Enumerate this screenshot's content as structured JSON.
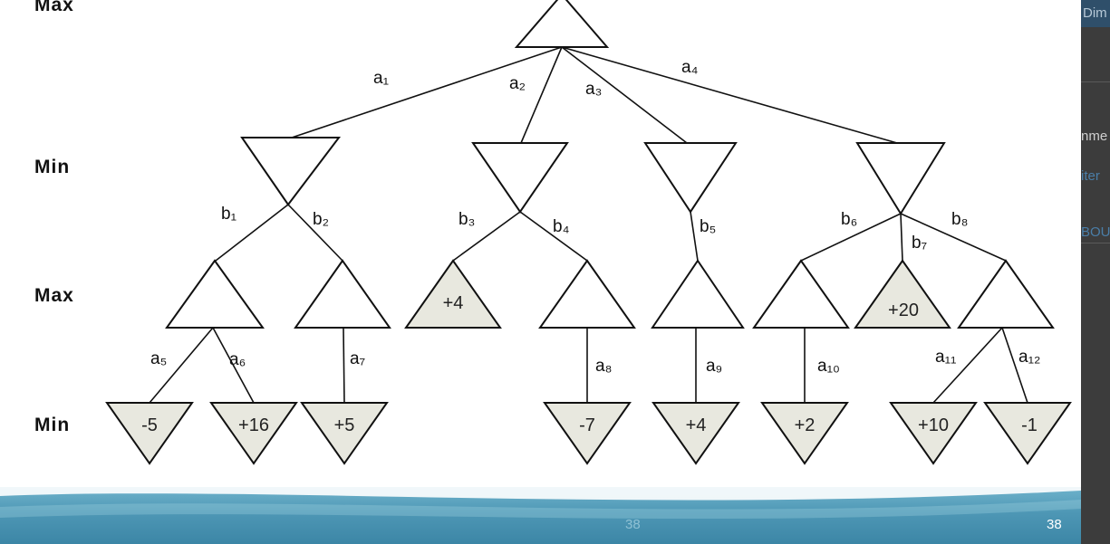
{
  "levels": [
    "Max",
    "Min",
    "Max",
    "Min"
  ],
  "edges": [
    {
      "name": "edge-a1",
      "label": "a₁"
    },
    {
      "name": "edge-a2",
      "label": "a₂"
    },
    {
      "name": "edge-a3",
      "label": "a₃"
    },
    {
      "name": "edge-a4",
      "label": "a₄"
    },
    {
      "name": "edge-b1",
      "label": "b₁"
    },
    {
      "name": "edge-b2",
      "label": "b₂"
    },
    {
      "name": "edge-b3",
      "label": "b₃"
    },
    {
      "name": "edge-b4",
      "label": "b₄"
    },
    {
      "name": "edge-b5",
      "label": "b₅"
    },
    {
      "name": "edge-b6",
      "label": "b₆"
    },
    {
      "name": "edge-b7",
      "label": "b₇"
    },
    {
      "name": "edge-b8",
      "label": "b₈"
    },
    {
      "name": "edge-a5",
      "label": "a₅"
    },
    {
      "name": "edge-a6",
      "label": "a₆"
    },
    {
      "name": "edge-a7",
      "label": "a₇"
    },
    {
      "name": "edge-a8",
      "label": "a₈"
    },
    {
      "name": "edge-a9",
      "label": "a₉"
    },
    {
      "name": "edge-a10",
      "label": "a₁₀"
    },
    {
      "name": "edge-a11",
      "label": "a₁₁"
    },
    {
      "name": "edge-a12",
      "label": "a₁₂"
    }
  ],
  "max_leaf_values": [
    "+4",
    "+20"
  ],
  "min_leaf_values": [
    "-5",
    "+16",
    "+5",
    "-7",
    "+4",
    "+2",
    "+10",
    "-1"
  ],
  "page_number": "38",
  "side_panel_fragments": [
    "Dim",
    "nme",
    "iter",
    "BOU"
  ],
  "colors": {
    "leaf_fill": "#e8e8df",
    "node_fill": "#ffffff",
    "stroke": "#111111",
    "footer": "#4e97b5",
    "side_panel": "#3c3c3c"
  }
}
